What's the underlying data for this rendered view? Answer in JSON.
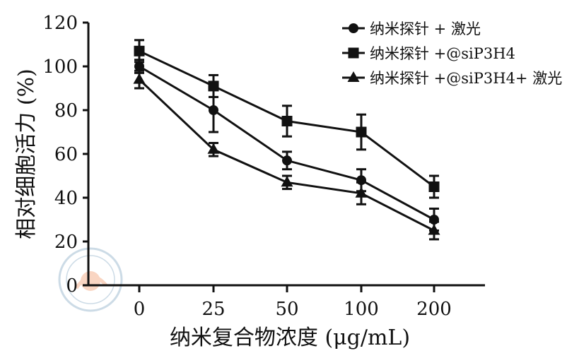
{
  "chart_data": {
    "type": "line",
    "xlabel": "纳米复合物浓度 (μg/mL)",
    "ylabel": "相对细胞活力 (%)",
    "categories": [
      "0",
      "25",
      "50",
      "100",
      "200"
    ],
    "ylim": [
      0,
      120
    ],
    "yticks": [
      0,
      20,
      40,
      60,
      80,
      100,
      120
    ],
    "grid": false,
    "legend_position": "top-right",
    "series": [
      {
        "name": "纳米探针 + 激光",
        "marker": "circle",
        "values": [
          100,
          80,
          57,
          48,
          30
        ],
        "errors": [
          3,
          10,
          4,
          5,
          5
        ]
      },
      {
        "name": "纳米探针 +@siP3H4",
        "marker": "square",
        "values": [
          107,
          91,
          75,
          70,
          45
        ],
        "errors": [
          5,
          5,
          7,
          8,
          5
        ]
      },
      {
        "name": "纳米探针 +@siP3H4+ 激光",
        "marker": "triangle",
        "values": [
          94,
          62,
          47,
          42,
          25
        ],
        "errors": [
          4,
          3,
          3,
          5,
          4
        ]
      }
    ]
  }
}
